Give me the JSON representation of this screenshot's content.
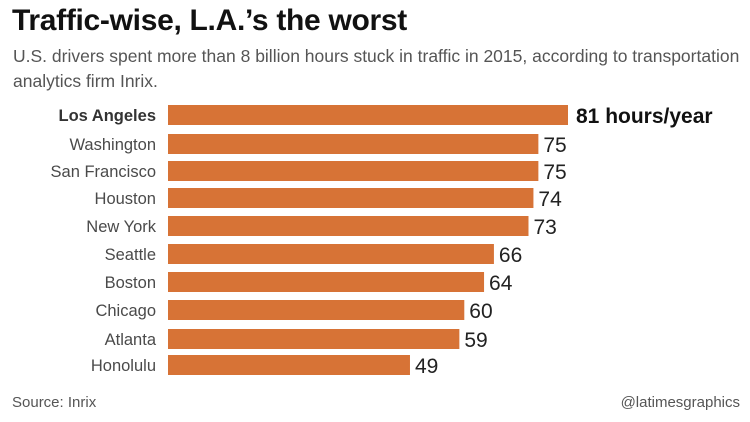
{
  "header": {
    "title": "Traffic-wise, L.A.’s the worst",
    "subtitle": "U.S. drivers spent more than 8 billion hours stuck in traffic in 2015, according to transportation analytics firm Inrix."
  },
  "footer": {
    "source": "Source: Inrix",
    "credit": "@latimesgraphics"
  },
  "colors": {
    "bar": "#D77336"
  },
  "chart_data": {
    "type": "bar",
    "orientation": "horizontal",
    "title": "Traffic-wise, L.A.’s the worst",
    "subtitle": "U.S. drivers spent more than 8 billion hours stuck in traffic in 2015, according to transportation analytics firm Inrix.",
    "xlabel": "",
    "ylabel": "",
    "unit": "hours/year",
    "categories": [
      "Los Angeles",
      "Washington",
      "San Francisco",
      "Houston",
      "New York",
      "Seattle",
      "Boston",
      "Chicago",
      "Atlanta",
      "Honolulu"
    ],
    "values": [
      81,
      75,
      75,
      74,
      73,
      66,
      64,
      60,
      59,
      49
    ],
    "value_labels": [
      "81 hours/year",
      "75",
      "75",
      "74",
      "73",
      "66",
      "64",
      "60",
      "59",
      "49"
    ],
    "highlight": "Los Angeles",
    "xlim": [
      0,
      81
    ],
    "grid": false,
    "legend": "none",
    "source": "Source: Inrix"
  }
}
